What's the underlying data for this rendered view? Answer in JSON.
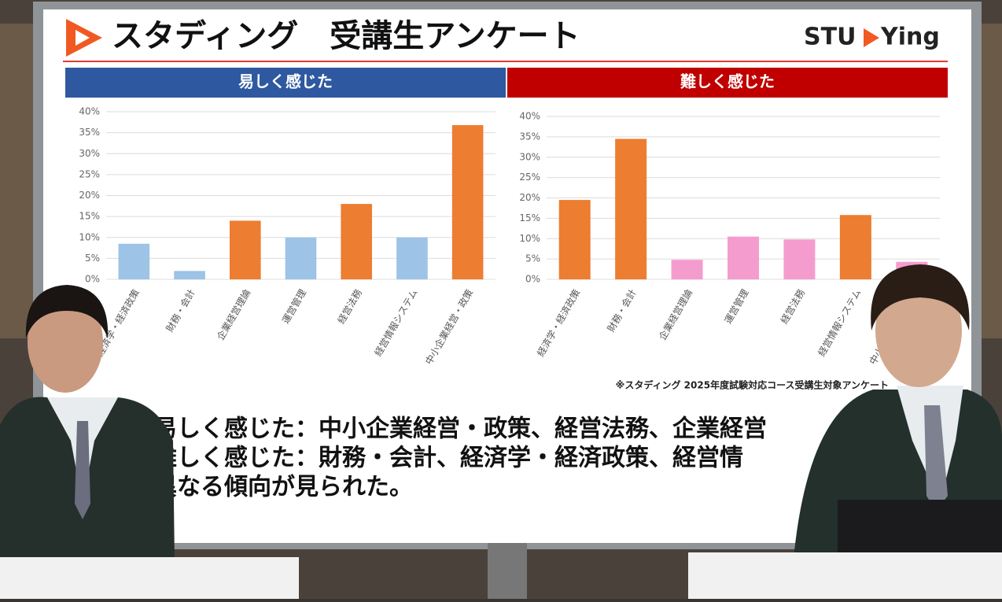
{
  "slide_title": "スタディング　受講生アンケート",
  "logo": [
    "STU",
    "Ying"
  ],
  "chart_data": [
    {
      "type": "bar",
      "title": "易しく感じた",
      "header_color": "#2e58a0",
      "categories": [
        "経済学・経済政策",
        "財務・会計",
        "企業経営理論",
        "運営管理",
        "経営法務",
        "経営情報システム",
        "中小企業経営・政策"
      ],
      "values": [
        8.5,
        2,
        14,
        10,
        18,
        10,
        36.8
      ],
      "colors": [
        "#9dc3e6",
        "#9dc3e6",
        "#ed7d31",
        "#9dc3e6",
        "#ed7d31",
        "#9dc3e6",
        "#ed7d31"
      ],
      "ylim": [
        0,
        40
      ],
      "yticks": [
        {
          "value": 0,
          "label": "0%"
        },
        {
          "value": 5,
          "label": "5%"
        },
        {
          "value": 10,
          "label": "10%"
        },
        {
          "value": 15,
          "label": "15%"
        },
        {
          "value": 20,
          "label": "20%"
        },
        {
          "value": 25,
          "label": "25%"
        },
        {
          "value": 30,
          "label": "30%"
        },
        {
          "value": 35,
          "label": "35%"
        },
        {
          "value": 40,
          "label": "40%"
        }
      ],
      "grid": true
    },
    {
      "type": "bar",
      "title": "難しく感じた",
      "header_color": "#c00000",
      "categories": [
        "経済学・経済政策",
        "財務・会計",
        "企業経営理論",
        "運営管理",
        "経営法務",
        "経営情報システム",
        "中小企業経営・政策"
      ],
      "values": [
        19.5,
        34.5,
        4.8,
        10.5,
        9.8,
        15.8,
        4.3
      ],
      "colors": [
        "#ed7d31",
        "#ed7d31",
        "#f59ccf",
        "#f59ccf",
        "#f59ccf",
        "#ed7d31",
        "#f59ccf"
      ],
      "ylim": [
        0,
        40
      ],
      "yticks": [
        {
          "value": 0,
          "label": "0%"
        },
        {
          "value": 5,
          "label": "5%"
        },
        {
          "value": 10,
          "label": "10%"
        },
        {
          "value": 15,
          "label": "15%"
        },
        {
          "value": 20,
          "label": "20%"
        },
        {
          "value": 25,
          "label": "25%"
        },
        {
          "value": 30,
          "label": "30%"
        },
        {
          "value": 35,
          "label": "35%"
        },
        {
          "value": 40,
          "label": "40%"
        }
      ],
      "grid": true
    }
  ],
  "source_note": "※スタディング 2025年度試験対応コース受講生対象アンケート",
  "summary_lines": [
    "易しく感じた：中小企業経営・政策、経営法務、企業経営",
    "難しく感じた：財務・会計、経済学・経済政策、経営情",
    "異なる傾向が見られた。"
  ]
}
